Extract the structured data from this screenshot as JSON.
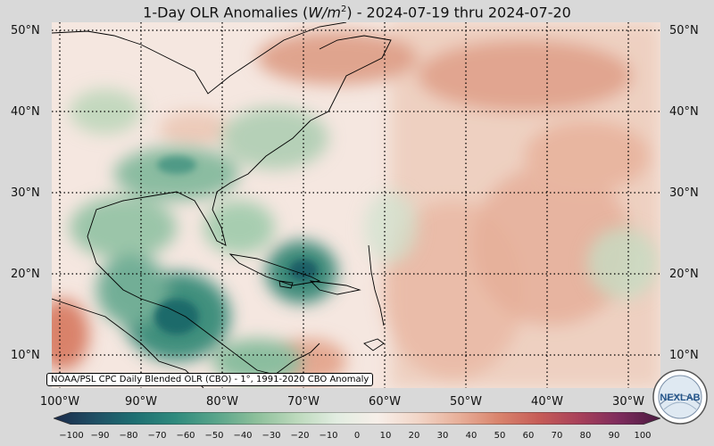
{
  "title": {
    "prefix": "1-Day OLR Anomalies (",
    "unit_base": "W/m",
    "unit_exp": "2",
    "suffix": ") - 2024-07-19 thru 2024-07-20"
  },
  "latitudes": [
    "50°N",
    "40°N",
    "30°N",
    "20°N",
    "10°N"
  ],
  "latitude_values": [
    50,
    40,
    30,
    20,
    10
  ],
  "longitudes": [
    "100°W",
    "90°W",
    "80°W",
    "70°W",
    "60°W",
    "50°W",
    "40°W",
    "30°W"
  ],
  "longitude_values": [
    -100,
    -90,
    -80,
    -70,
    -60,
    -50,
    -40,
    -30
  ],
  "map_extent": {
    "lon_min": -100,
    "lon_max": -25,
    "lat_min": 6,
    "lat_max": 51
  },
  "source_label": "NOAA/PSL CPC Daily Blended OLR (CBO) - 1°, 1991-2020 CBO Anomaly",
  "colorbar": {
    "ticks": [
      "−100",
      "−90",
      "−80",
      "−70",
      "−60",
      "−50",
      "−40",
      "−30",
      "−20",
      "−10",
      "0",
      "10",
      "20",
      "30",
      "40",
      "50",
      "60",
      "70",
      "80",
      "90",
      "100"
    ],
    "min": -100,
    "max": 100,
    "colors": [
      "#1b2a4a",
      "#1f4e64",
      "#1e6f72",
      "#2f8a7d",
      "#58a48a",
      "#8cbf9a",
      "#bcd9bc",
      "#e2ede1",
      "#f7efe9",
      "#f2d6c8",
      "#e8b09a",
      "#d9846d",
      "#c65c57",
      "#a8405a",
      "#7d2b5c",
      "#4a1a40"
    ]
  },
  "logo": {
    "text": "NEXLAB",
    "icon": "nexlab-logo"
  },
  "colors": {
    "background": "#d9d9d9",
    "neutral": "#f7efe9",
    "negative": "#3e9180",
    "positive": "#d98a70"
  }
}
